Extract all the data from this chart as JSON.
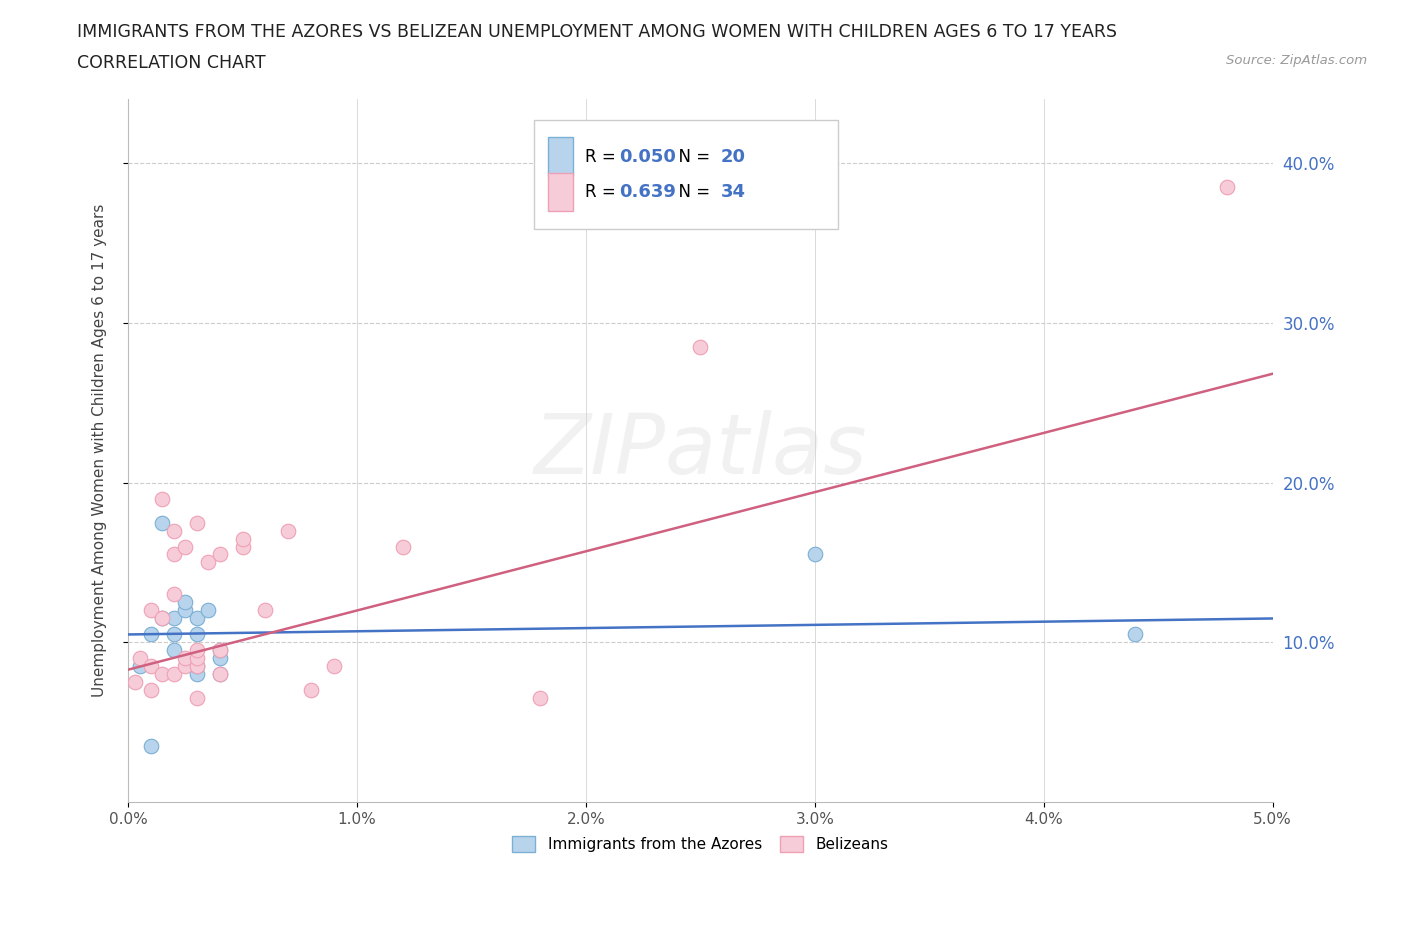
{
  "title_line1": "IMMIGRANTS FROM THE AZORES VS BELIZEAN UNEMPLOYMENT AMONG WOMEN WITH CHILDREN AGES 6 TO 17 YEARS",
  "title_line2": "CORRELATION CHART",
  "source_text": "Source: ZipAtlas.com",
  "ylabel": "Unemployment Among Women with Children Ages 6 to 17 years",
  "xlim": [
    0.0,
    0.05
  ],
  "ylim": [
    0.0,
    0.44
  ],
  "xtick_labels": [
    "0.0%",
    "1.0%",
    "2.0%",
    "3.0%",
    "4.0%",
    "5.0%"
  ],
  "xtick_values": [
    0.0,
    0.01,
    0.02,
    0.03,
    0.04,
    0.05
  ],
  "ytick_labels": [
    "10.0%",
    "20.0%",
    "30.0%",
    "40.0%"
  ],
  "ytick_values": [
    0.1,
    0.2,
    0.3,
    0.4
  ],
  "azores_color_edge": "#7bafd4",
  "azores_color_fill": "#b8d4ec",
  "belizean_color_edge": "#f0a0b5",
  "belizean_color_fill": "#f5ccd8",
  "azores_R": "0.050",
  "azores_N": "20",
  "belizean_R": "0.639",
  "belizean_N": "34",
  "azores_line_color": "#4472c4",
  "belizean_line_color": "#d06080",
  "label_color": "#4472c4",
  "watermark": "ZIPatlas",
  "grid_color": "#cccccc",
  "azores_x": [
    0.0005,
    0.001,
    0.001,
    0.0015,
    0.0015,
    0.002,
    0.002,
    0.002,
    0.0025,
    0.0025,
    0.003,
    0.003,
    0.003,
    0.003,
    0.0035,
    0.004,
    0.004,
    0.004,
    0.03,
    0.044
  ],
  "azores_y": [
    0.085,
    0.035,
    0.105,
    0.115,
    0.175,
    0.095,
    0.105,
    0.115,
    0.12,
    0.125,
    0.08,
    0.085,
    0.105,
    0.115,
    0.12,
    0.08,
    0.09,
    0.095,
    0.155,
    0.105
  ],
  "belizean_x": [
    0.0003,
    0.0005,
    0.001,
    0.001,
    0.001,
    0.0015,
    0.0015,
    0.0015,
    0.002,
    0.002,
    0.002,
    0.002,
    0.0025,
    0.0025,
    0.0025,
    0.003,
    0.003,
    0.003,
    0.003,
    0.003,
    0.0035,
    0.004,
    0.004,
    0.004,
    0.005,
    0.005,
    0.006,
    0.007,
    0.008,
    0.009,
    0.012,
    0.018,
    0.025,
    0.048
  ],
  "belizean_y": [
    0.075,
    0.09,
    0.07,
    0.085,
    0.12,
    0.08,
    0.115,
    0.19,
    0.08,
    0.13,
    0.155,
    0.17,
    0.085,
    0.09,
    0.16,
    0.065,
    0.085,
    0.09,
    0.095,
    0.175,
    0.15,
    0.08,
    0.095,
    0.155,
    0.16,
    0.165,
    0.12,
    0.17,
    0.07,
    0.085,
    0.16,
    0.065,
    0.285,
    0.385
  ],
  "azores_trendline_x": [
    0.0,
    0.05
  ],
  "azores_trendline_y": [
    0.105,
    0.115
  ],
  "belizean_trendline_x": [
    0.0,
    0.05
  ],
  "belizean_trendline_y": [
    0.083,
    0.268
  ]
}
